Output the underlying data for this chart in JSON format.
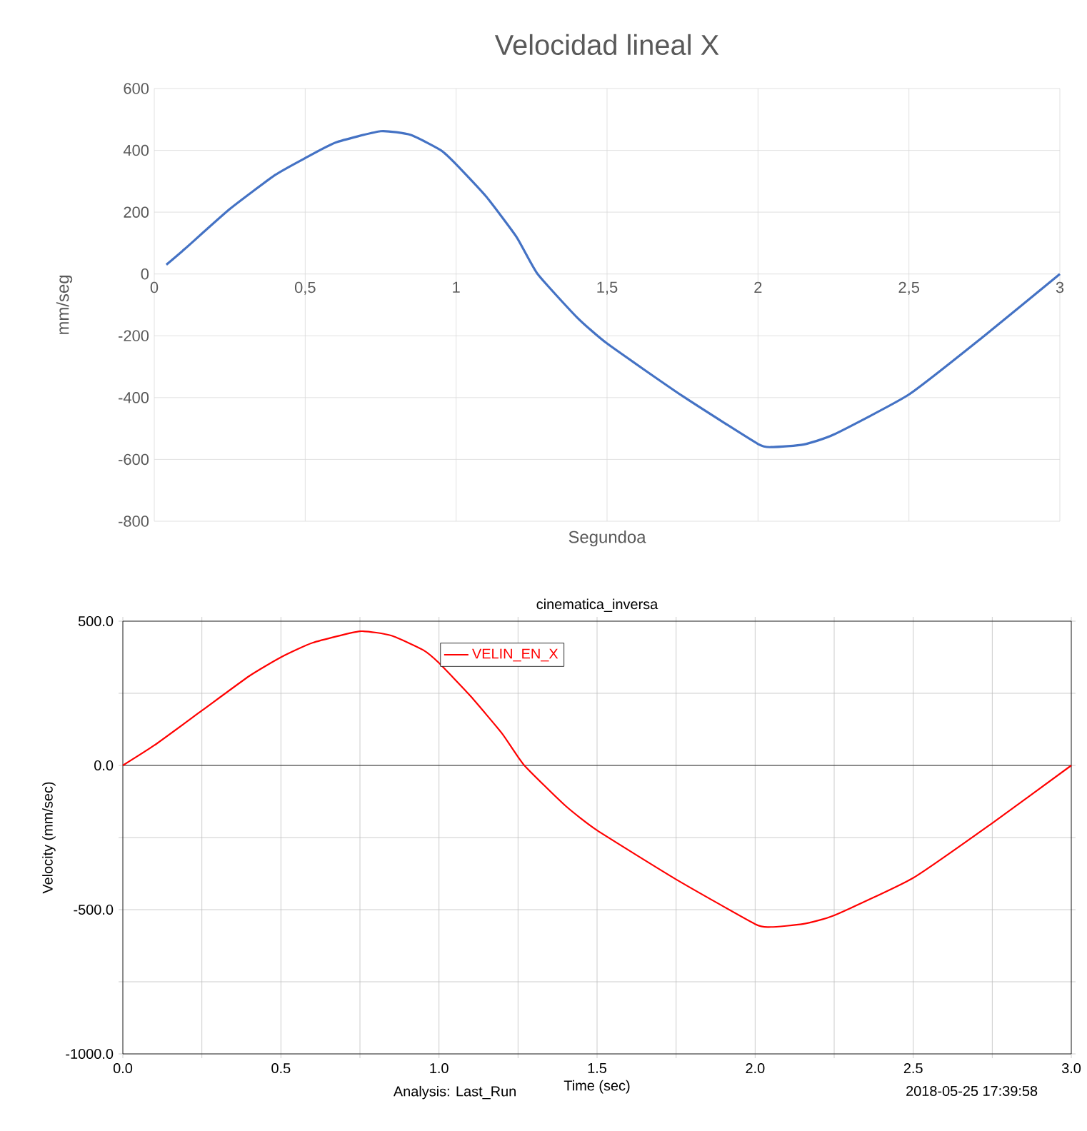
{
  "chart_data": [
    {
      "type": "line",
      "title": "Velocidad lineal X",
      "xlabel": "Segundoa",
      "ylabel": "mm/seg",
      "xlim": [
        0,
        3
      ],
      "ylim": [
        -800,
        600
      ],
      "xticks": [
        0,
        {
          "value": 0.5,
          "label": "0,5"
        },
        1,
        {
          "value": 1.5,
          "label": "1,5"
        },
        2,
        {
          "value": 2.5,
          "label": "2,5"
        },
        3
      ],
      "yticks": [
        -800,
        -600,
        -400,
        -200,
        0,
        200,
        400,
        600
      ],
      "grid": true,
      "line_style": "solid",
      "series": [
        {
          "color": "#4472c4",
          "x": [
            0.04,
            0.1,
            0.25,
            0.4,
            0.5,
            0.6,
            0.75,
            0.85,
            0.95,
            1.0,
            1.1,
            1.2,
            1.27,
            1.4,
            1.5,
            1.75,
            2.0,
            2.05,
            2.15,
            2.25,
            2.5,
            2.75,
            3.0
          ],
          "values": [
            30,
            80,
            210,
            320,
            375,
            425,
            462,
            450,
            400,
            355,
            250,
            120,
            0,
            -140,
            -225,
            -395,
            -550,
            -560,
            -552,
            -520,
            -390,
            -200,
            0
          ]
        }
      ]
    },
    {
      "type": "line",
      "title": "cinematica_inversa",
      "xlabel": "Time (sec)",
      "ylabel": "Velocity (mm/sec)",
      "xlim": [
        0,
        3
      ],
      "ylim": [
        -1000,
        500
      ],
      "xticks": [
        {
          "value": 0,
          "label": "0.0"
        },
        {
          "value": 0.25,
          "label": null
        },
        {
          "value": 0.5,
          "label": "0.5"
        },
        {
          "value": 0.75,
          "label": null
        },
        {
          "value": 1,
          "label": "1.0"
        },
        {
          "value": 1.25,
          "label": null
        },
        {
          "value": 1.5,
          "label": "1.5"
        },
        {
          "value": 1.75,
          "label": null
        },
        {
          "value": 2,
          "label": "2.0"
        },
        {
          "value": 2.25,
          "label": null
        },
        {
          "value": 2.5,
          "label": "2.5"
        },
        {
          "value": 2.75,
          "label": null
        },
        {
          "value": 3,
          "label": "3.0"
        }
      ],
      "yticks": [
        {
          "value": -1000,
          "label": "-1000.0"
        },
        {
          "value": -750,
          "label": null
        },
        {
          "value": -500,
          "label": "-500.0"
        },
        {
          "value": -250,
          "label": null
        },
        {
          "value": 0,
          "label": "0.0"
        },
        {
          "value": 250,
          "label": null
        },
        {
          "value": 500,
          "label": "500.0"
        }
      ],
      "grid": true,
      "legend": "top",
      "line_style": "solid",
      "ref_lines": [
        {
          "axis": "y",
          "value": 0,
          "color": "#000000"
        }
      ],
      "annotations": [
        "Analysis:  Last_Run",
        "2018-05-25 17:39:58"
      ],
      "series": [
        {
          "name": "VELIN_EN_X",
          "color": "#ff0000",
          "x": [
            0.0,
            0.1,
            0.25,
            0.4,
            0.5,
            0.6,
            0.75,
            0.85,
            0.95,
            1.0,
            1.1,
            1.2,
            1.27,
            1.4,
            1.5,
            1.75,
            2.0,
            2.05,
            2.15,
            2.25,
            2.5,
            2.75,
            3.0
          ],
          "values": [
            0,
            70,
            190,
            310,
            375,
            425,
            465,
            450,
            400,
            355,
            240,
            110,
            0,
            -140,
            -225,
            -395,
            -550,
            -560,
            -550,
            -520,
            -390,
            -200,
            0
          ]
        }
      ]
    }
  ]
}
